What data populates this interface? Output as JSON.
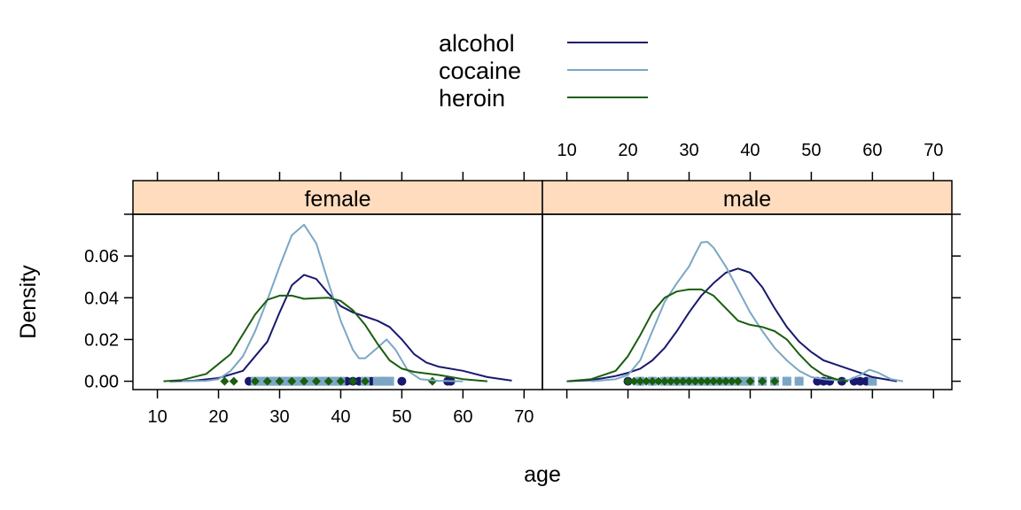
{
  "colors": {
    "alcohol": "#191970",
    "cocaine": "#7ba7c4",
    "heroin": "#1a5e0f",
    "strip": "#ffdcbd"
  },
  "chart_data": {
    "type": "density",
    "title": "",
    "xlabel": "age",
    "ylabel": "Density",
    "xlim": [
      6,
      73
    ],
    "ylim": [
      -0.004,
      0.08
    ],
    "x_ticks": [
      10,
      20,
      30,
      40,
      50,
      60,
      70
    ],
    "y_ticks": [
      0.0,
      0.02,
      0.04,
      0.06
    ],
    "y_tick_labels": [
      "0.00",
      "0.02",
      "0.04",
      "0.06"
    ],
    "legend": {
      "placement": "top",
      "entries": [
        "alcohol",
        "cocaine",
        "heroin"
      ]
    },
    "panels": [
      {
        "name": "female",
        "series": [
          {
            "name": "alcohol",
            "x": [
              12,
              16,
              20,
              24,
              28,
              30,
              32,
              34,
              36,
              38,
              40,
              42,
              44,
              46,
              48,
              50,
              52,
              54,
              56,
              60,
              64,
              68
            ],
            "y": [
              0.0,
              0.0003,
              0.0015,
              0.005,
              0.019,
              0.033,
              0.046,
              0.051,
              0.049,
              0.042,
              0.036,
              0.033,
              0.031,
              0.029,
              0.026,
              0.02,
              0.013,
              0.009,
              0.007,
              0.005,
              0.002,
              0.0003
            ]
          },
          {
            "name": "cocaine",
            "x": [
              14,
              18,
              20,
              22,
              24,
              26,
              28,
              30,
              32,
              34,
              36,
              38,
              40,
              42,
              43,
              44,
              46,
              47.5,
              49,
              51,
              53,
              56,
              60
            ],
            "y": [
              0.0,
              0.0002,
              0.001,
              0.005,
              0.012,
              0.024,
              0.039,
              0.055,
              0.07,
              0.075,
              0.066,
              0.047,
              0.029,
              0.015,
              0.011,
              0.011,
              0.016,
              0.02,
              0.015,
              0.005,
              0.001,
              0.0002,
              0.0
            ]
          },
          {
            "name": "heroin",
            "x": [
              11,
              14,
              18,
              22,
              26,
              28,
              30,
              32,
              34,
              36,
              38,
              40,
              42,
              44,
              46,
              48,
              50,
              52,
              56,
              60,
              64
            ],
            "y": [
              0.0,
              0.0006,
              0.0035,
              0.013,
              0.032,
              0.039,
              0.041,
              0.041,
              0.0395,
              0.0398,
              0.04,
              0.0385,
              0.034,
              0.027,
              0.018,
              0.01,
              0.006,
              0.0045,
              0.003,
              0.001,
              0.0
            ]
          }
        ],
        "rug": [
          {
            "name": "alcohol",
            "x": [
              25,
              27.5,
              29,
              31,
              33,
              35,
              37,
              39,
              41,
              42,
              43,
              45,
              47,
              50,
              57.5,
              58
            ]
          },
          {
            "name": "cocaine",
            "x": [
              26,
              27,
              28,
              29,
              30,
              31,
              32,
              33,
              34,
              35,
              36,
              37,
              38,
              39,
              40,
              44,
              46,
              47,
              48
            ]
          },
          {
            "name": "heroin",
            "x": [
              21,
              22.5,
              26,
              28,
              30,
              32,
              34,
              36,
              38,
              40,
              42,
              44,
              55
            ]
          }
        ]
      },
      {
        "name": "male",
        "series": [
          {
            "name": "alcohol",
            "x": [
              10,
              14,
              18,
              20,
              22,
              24,
              26,
              28,
              30,
              32,
              34,
              36,
              38,
              40,
              42,
              44,
              46,
              48,
              50,
              52,
              54,
              56,
              58,
              60,
              64
            ],
            "y": [
              0.0,
              0.0005,
              0.0025,
              0.004,
              0.006,
              0.01,
              0.016,
              0.024,
              0.033,
              0.041,
              0.047,
              0.052,
              0.054,
              0.052,
              0.045,
              0.035,
              0.026,
              0.019,
              0.014,
              0.01,
              0.008,
              0.006,
              0.004,
              0.002,
              0.0
            ]
          },
          {
            "name": "cocaine",
            "x": [
              14,
              18,
              20,
              22,
              24,
              26,
              28,
              30,
              31,
              32,
              33,
              34,
              36,
              38,
              40,
              42,
              44,
              46,
              48,
              50,
              52,
              54,
              56,
              58,
              59.5,
              61,
              63,
              65
            ],
            "y": [
              0.0,
              0.001,
              0.003,
              0.01,
              0.024,
              0.038,
              0.047,
              0.055,
              0.061,
              0.0665,
              0.0668,
              0.064,
              0.055,
              0.044,
              0.033,
              0.024,
              0.016,
              0.01,
              0.005,
              0.002,
              0.001,
              0.0005,
              0.0005,
              0.003,
              0.0055,
              0.004,
              0.001,
              0.0
            ]
          },
          {
            "name": "heroin",
            "x": [
              10,
              14,
              18,
              20,
              22,
              24,
              26,
              28,
              30,
              32,
              34,
              36,
              38,
              40,
              42,
              44,
              46,
              48,
              50,
              52,
              54,
              56
            ],
            "y": [
              0.0,
              0.001,
              0.005,
              0.012,
              0.022,
              0.033,
              0.04,
              0.043,
              0.044,
              0.044,
              0.041,
              0.035,
              0.029,
              0.027,
              0.026,
              0.024,
              0.02,
              0.013,
              0.007,
              0.003,
              0.001,
              0.0
            ]
          }
        ],
        "rug": [
          {
            "name": "alcohol",
            "x": [
              20,
              22,
              24,
              26,
              28,
              30,
              32,
              34,
              36,
              38,
              40,
              42,
              44,
              46,
              48,
              51,
              52,
              53,
              55,
              57,
              58,
              59
            ]
          },
          {
            "name": "cocaine",
            "x": [
              22,
              24,
              26,
              27,
              28,
              29,
              30,
              31,
              32,
              33,
              34,
              35,
              36,
              37,
              38,
              39,
              40,
              42,
              44,
              46,
              48,
              60
            ]
          },
          {
            "name": "heroin",
            "x": [
              20,
              21,
              22,
              23,
              24,
              25,
              26,
              27,
              28,
              29,
              30,
              31,
              32,
              33,
              34,
              35,
              36,
              37,
              38,
              40,
              42,
              44
            ]
          }
        ]
      }
    ]
  }
}
